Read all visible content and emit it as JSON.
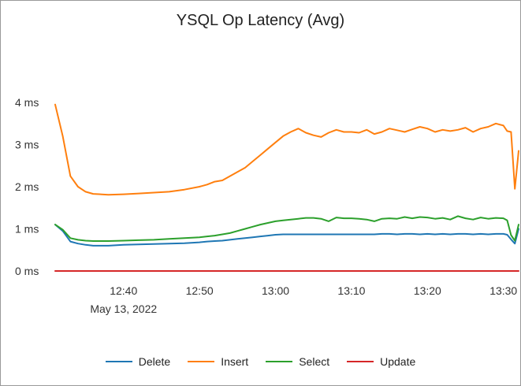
{
  "chart_data": {
    "type": "line",
    "title": "YSQL Op Latency (Avg)",
    "y_unit": "ms",
    "ylim": [
      0,
      4
    ],
    "y_ticks": [
      "0 ms",
      "1 ms",
      "2 ms",
      "3 ms",
      "4 ms"
    ],
    "x_ticks": [
      "12:40",
      "12:50",
      "13:00",
      "13:10",
      "13:20",
      "13:30"
    ],
    "date_label": "May 13, 2022",
    "xlim": [
      "12:31",
      "13:32"
    ],
    "x": [
      "12:31",
      "12:32",
      "12:33",
      "12:34",
      "12:35",
      "12:36",
      "12:38",
      "12:40",
      "12:42",
      "12:44",
      "12:46",
      "12:48",
      "12:50",
      "12:51",
      "12:52",
      "12:53",
      "12:54",
      "12:55",
      "12:56",
      "12:57",
      "12:58",
      "12:59",
      "13:00",
      "13:01",
      "13:02",
      "13:03",
      "13:04",
      "13:05",
      "13:06",
      "13:07",
      "13:08",
      "13:09",
      "13:10",
      "13:11",
      "13:12",
      "13:13",
      "13:14",
      "13:15",
      "13:16",
      "13:17",
      "13:18",
      "13:19",
      "13:20",
      "13:21",
      "13:22",
      "13:23",
      "13:24",
      "13:25",
      "13:26",
      "13:27",
      "13:28",
      "13:29",
      "13:30",
      "13:30.5",
      "13:31",
      "13:31.5",
      "13:32"
    ],
    "series": [
      {
        "name": "Delete",
        "color": "#1f77b4",
        "values": [
          1.1,
          0.95,
          0.7,
          0.65,
          0.62,
          0.6,
          0.6,
          0.62,
          0.63,
          0.64,
          0.65,
          0.66,
          0.68,
          0.7,
          0.71,
          0.72,
          0.74,
          0.76,
          0.78,
          0.8,
          0.82,
          0.84,
          0.86,
          0.87,
          0.87,
          0.87,
          0.87,
          0.87,
          0.87,
          0.87,
          0.87,
          0.87,
          0.87,
          0.87,
          0.87,
          0.87,
          0.88,
          0.88,
          0.87,
          0.88,
          0.88,
          0.87,
          0.88,
          0.87,
          0.88,
          0.87,
          0.88,
          0.88,
          0.87,
          0.88,
          0.87,
          0.88,
          0.88,
          0.86,
          0.75,
          0.65,
          1.0
        ]
      },
      {
        "name": "Insert",
        "color": "#ff7f0e",
        "values": [
          3.95,
          3.2,
          2.25,
          2.0,
          1.88,
          1.83,
          1.81,
          1.82,
          1.84,
          1.86,
          1.88,
          1.93,
          2.0,
          2.05,
          2.12,
          2.15,
          2.25,
          2.35,
          2.45,
          2.6,
          2.75,
          2.9,
          3.05,
          3.2,
          3.3,
          3.38,
          3.28,
          3.22,
          3.18,
          3.28,
          3.35,
          3.3,
          3.3,
          3.28,
          3.35,
          3.25,
          3.3,
          3.38,
          3.34,
          3.3,
          3.36,
          3.42,
          3.38,
          3.3,
          3.35,
          3.32,
          3.35,
          3.4,
          3.3,
          3.38,
          3.42,
          3.5,
          3.45,
          3.32,
          3.3,
          1.95,
          2.85
        ]
      },
      {
        "name": "Select",
        "color": "#2ca02c",
        "values": [
          1.1,
          0.98,
          0.78,
          0.74,
          0.72,
          0.71,
          0.71,
          0.72,
          0.73,
          0.74,
          0.76,
          0.78,
          0.8,
          0.82,
          0.84,
          0.87,
          0.9,
          0.95,
          1.0,
          1.05,
          1.1,
          1.14,
          1.18,
          1.2,
          1.22,
          1.24,
          1.26,
          1.26,
          1.24,
          1.18,
          1.27,
          1.25,
          1.25,
          1.24,
          1.22,
          1.18,
          1.24,
          1.25,
          1.24,
          1.28,
          1.25,
          1.28,
          1.27,
          1.24,
          1.26,
          1.22,
          1.3,
          1.25,
          1.22,
          1.27,
          1.24,
          1.26,
          1.25,
          1.2,
          0.85,
          0.72,
          1.1
        ]
      },
      {
        "name": "Update",
        "color": "#d62728",
        "values": [
          0,
          0,
          0,
          0,
          0,
          0,
          0,
          0,
          0,
          0,
          0,
          0,
          0,
          0,
          0,
          0,
          0,
          0,
          0,
          0,
          0,
          0,
          0,
          0,
          0,
          0,
          0,
          0,
          0,
          0,
          0,
          0,
          0,
          0,
          0,
          0,
          0,
          0,
          0,
          0,
          0,
          0,
          0,
          0,
          0,
          0,
          0,
          0,
          0,
          0,
          0,
          0,
          0,
          0,
          0,
          0,
          0
        ]
      }
    ],
    "grid": false,
    "legend_position": "bottom-center"
  }
}
